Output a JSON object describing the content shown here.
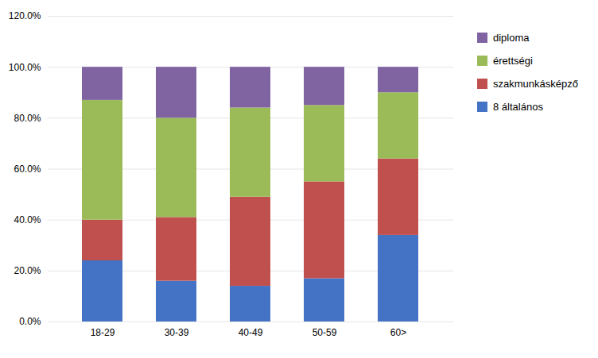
{
  "chart_data": {
    "type": "bar",
    "stacked": true,
    "categories": [
      "18-29",
      "30-39",
      "40-49",
      "50-59",
      "60>"
    ],
    "series": [
      {
        "name": "8 általános",
        "color": "#4472C4",
        "values": [
          0.24,
          0.16,
          0.14,
          0.17,
          0.34
        ]
      },
      {
        "name": "szakmunkásképző",
        "color": "#C0504D",
        "values": [
          0.16,
          0.25,
          0.35,
          0.38,
          0.3
        ]
      },
      {
        "name": "érettségi",
        "color": "#9BBB59",
        "values": [
          0.47,
          0.39,
          0.35,
          0.3,
          0.26
        ]
      },
      {
        "name": "diploma",
        "color": "#8064A2",
        "values": [
          0.13,
          0.2,
          0.16,
          0.15,
          0.1
        ]
      }
    ],
    "ylim": [
      0.0,
      1.2
    ],
    "yticks": [
      {
        "value": 0.0,
        "label": "0.0%"
      },
      {
        "value": 0.2,
        "label": "20.0%"
      },
      {
        "value": 0.4,
        "label": "40.0%"
      },
      {
        "value": 0.6,
        "label": "60.0%"
      },
      {
        "value": 0.8,
        "label": "80.0%"
      },
      {
        "value": 1.0,
        "label": "100.0%"
      },
      {
        "value": 1.2,
        "label": "120.0%"
      }
    ],
    "grid": true,
    "legend": "right"
  }
}
